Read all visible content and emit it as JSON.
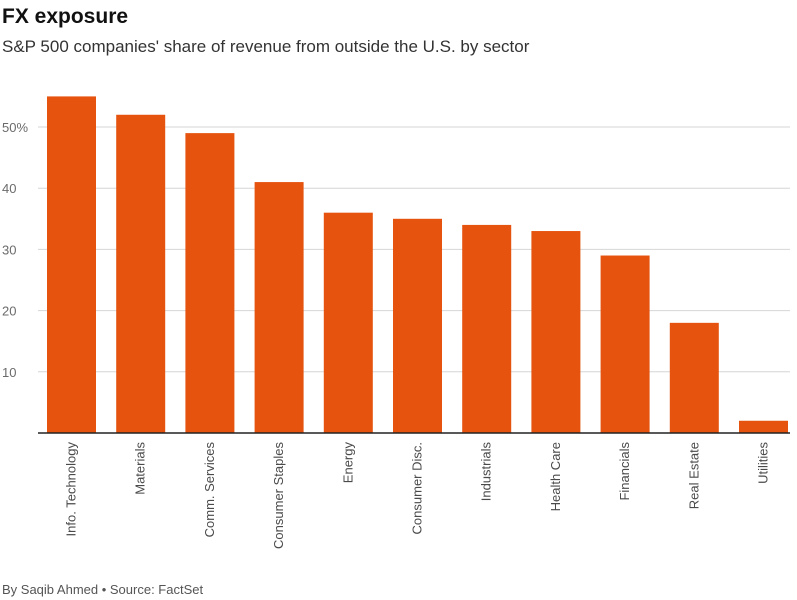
{
  "chart_data": {
    "type": "bar",
    "title": "FX exposure",
    "subtitle": "S&P 500 companies' share of revenue from outside the U.S. by sector",
    "xlabel": "",
    "ylabel": "",
    "categories": [
      "Info. Technology",
      "Materials",
      "Comm. Services",
      "Consumer Staples",
      "Energy",
      "Consumer Disc.",
      "Industrials",
      "Health Care",
      "Financials",
      "Real Estate",
      "Utilities"
    ],
    "values": [
      55,
      52,
      49,
      41,
      36,
      35,
      34,
      33,
      29,
      18,
      2
    ],
    "ylim": [
      0,
      55
    ],
    "yticks": [
      10,
      20,
      30,
      40,
      50
    ],
    "ytick_labels": [
      "10",
      "20",
      "30",
      "40",
      "50%"
    ],
    "bar_color": "#e5530f",
    "grid": true,
    "legend": "none"
  },
  "footer": {
    "credit": "By Saqib Ahmed • Source: FactSet"
  }
}
